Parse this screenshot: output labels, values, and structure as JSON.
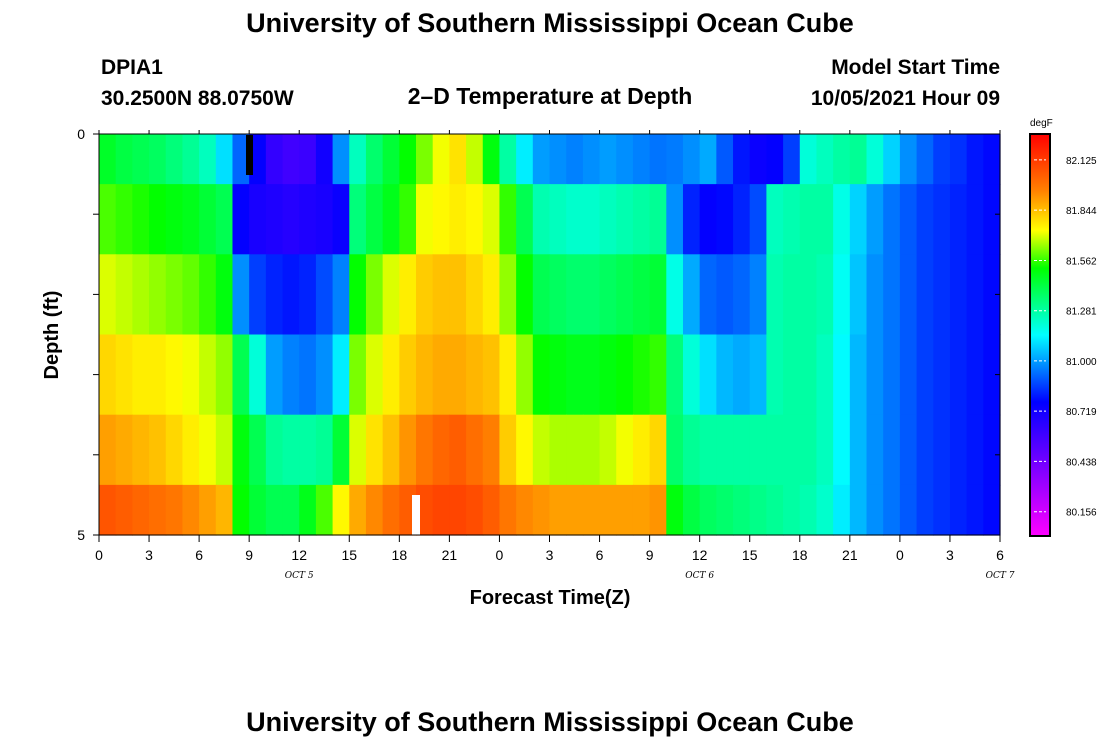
{
  "header": {
    "title": "University of Southern Mississippi Ocean Cube",
    "station": "DPIA1",
    "coords": "30.2500N  88.0750W",
    "plot_title": "2–D Temperature at Depth",
    "model_start_label": "Model Start Time",
    "model_start_value": "10/05/2021 Hour 09",
    "footer_title": "University of Southern Mississippi Ocean Cube"
  },
  "chart_data": {
    "type": "heatmap",
    "xlabel": "Forecast Time(Z)",
    "ylabel": "Depth (ft)",
    "colorbar_unit": "degF",
    "x_tick_labels": [
      "0",
      "3",
      "6",
      "9",
      "12",
      "15",
      "18",
      "21",
      "0",
      "3",
      "6",
      "9",
      "12",
      "15",
      "18",
      "21",
      "0",
      "3",
      "6"
    ],
    "date_labels": [
      "OCT 5",
      "OCT 6",
      "OCT 7"
    ],
    "date_label_hours": [
      12,
      36,
      54
    ],
    "y_tick_labels": [
      "0",
      "5"
    ],
    "ylim": [
      0,
      5
    ],
    "xlim": [
      0,
      54
    ],
    "colorbar_ticks": [
      "82.125",
      "81.844",
      "81.562",
      "81.281",
      "81.000",
      "80.719",
      "80.438",
      "80.156"
    ],
    "color_range": [
      80.02,
      82.27
    ],
    "hour_step": 1,
    "row_depths_ft": [
      0.25,
      1,
      2,
      3,
      4,
      4.75
    ],
    "rows": [
      [
        81.46,
        81.42,
        81.4,
        81.38,
        81.34,
        81.3,
        81.24,
        81.1,
        80.92,
        80.76,
        80.62,
        80.58,
        80.6,
        80.72,
        80.98,
        81.24,
        81.36,
        81.44,
        81.52,
        81.62,
        81.72,
        81.78,
        81.68,
        81.5,
        81.28,
        81.12,
        81.0,
        80.98,
        80.96,
        80.98,
        81.0,
        80.98,
        80.96,
        80.94,
        80.95,
        80.98,
        81.02,
        80.9,
        80.8,
        80.74,
        80.76,
        80.86,
        81.2,
        81.24,
        81.28,
        81.3,
        81.2,
        81.08,
        80.98,
        80.92,
        80.86,
        80.84,
        80.8,
        80.78
      ],
      [
        81.58,
        81.56,
        81.54,
        81.52,
        81.5,
        81.48,
        81.44,
        81.4,
        80.76,
        80.7,
        80.68,
        80.66,
        80.68,
        80.7,
        80.74,
        81.34,
        81.42,
        81.48,
        81.56,
        81.72,
        81.74,
        81.76,
        81.74,
        81.7,
        81.56,
        81.4,
        81.26,
        81.24,
        81.22,
        81.22,
        81.24,
        81.26,
        81.28,
        81.3,
        80.98,
        80.82,
        80.76,
        80.78,
        80.82,
        80.88,
        81.24,
        81.26,
        81.28,
        81.28,
        81.18,
        81.08,
        81.0,
        80.94,
        80.9,
        80.86,
        80.84,
        80.82,
        80.8,
        80.78
      ],
      [
        81.7,
        81.68,
        81.66,
        81.64,
        81.62,
        81.6,
        81.56,
        81.5,
        80.98,
        80.86,
        80.82,
        80.8,
        80.82,
        80.88,
        80.96,
        81.52,
        81.62,
        81.7,
        81.76,
        81.82,
        81.84,
        81.84,
        81.8,
        81.76,
        81.64,
        81.52,
        81.4,
        81.38,
        81.36,
        81.36,
        81.38,
        81.4,
        81.42,
        81.44,
        81.18,
        81.02,
        80.92,
        80.9,
        80.92,
        80.96,
        81.26,
        81.28,
        81.28,
        81.26,
        81.16,
        81.06,
        80.98,
        80.94,
        80.9,
        80.86,
        80.84,
        80.82,
        80.8,
        80.78
      ],
      [
        81.8,
        81.78,
        81.76,
        81.76,
        81.74,
        81.72,
        81.68,
        81.64,
        81.4,
        81.2,
        81.0,
        80.96,
        80.94,
        80.98,
        81.12,
        81.62,
        81.7,
        81.76,
        81.82,
        81.86,
        81.88,
        81.88,
        81.86,
        81.84,
        81.76,
        81.64,
        81.52,
        81.5,
        81.48,
        81.48,
        81.5,
        81.52,
        81.54,
        81.56,
        81.34,
        81.2,
        81.1,
        81.04,
        81.02,
        81.04,
        81.26,
        81.28,
        81.28,
        81.24,
        81.14,
        81.04,
        80.98,
        80.94,
        80.9,
        80.86,
        80.84,
        80.82,
        80.8,
        80.78
      ],
      [
        81.9,
        81.88,
        81.86,
        81.84,
        81.8,
        81.76,
        81.72,
        81.68,
        81.5,
        81.4,
        81.3,
        81.28,
        81.28,
        81.3,
        81.44,
        81.7,
        81.78,
        81.84,
        81.92,
        81.98,
        82.02,
        82.04,
        82.0,
        81.96,
        81.82,
        81.74,
        81.68,
        81.66,
        81.66,
        81.66,
        81.68,
        81.72,
        81.76,
        81.8,
        81.36,
        81.3,
        81.28,
        81.28,
        81.28,
        81.28,
        81.28,
        81.28,
        81.28,
        81.24,
        81.14,
        81.04,
        80.98,
        80.94,
        80.9,
        80.86,
        80.84,
        80.82,
        80.8,
        80.78
      ],
      [
        82.06,
        82.04,
        82.02,
        82.0,
        81.98,
        81.94,
        81.9,
        81.86,
        81.52,
        81.44,
        81.4,
        81.4,
        81.48,
        81.58,
        81.74,
        81.88,
        81.94,
        82.0,
        82.04,
        82.08,
        82.1,
        82.1,
        82.08,
        82.04,
        81.98,
        81.94,
        81.92,
        81.9,
        81.9,
        81.9,
        81.9,
        81.9,
        81.9,
        81.92,
        81.5,
        81.42,
        81.38,
        81.36,
        81.34,
        81.32,
        81.3,
        81.28,
        81.26,
        81.22,
        81.12,
        81.04,
        80.98,
        80.94,
        80.9,
        80.86,
        80.84,
        80.82,
        80.8,
        80.78
      ]
    ]
  }
}
